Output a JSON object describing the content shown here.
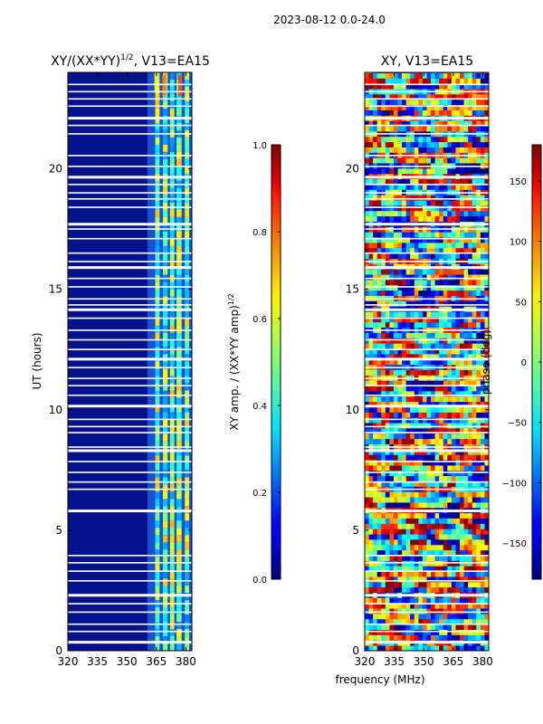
{
  "suptitle": "2023-08-12 0.0-24.0",
  "chart_data": [
    {
      "type": "heatmap",
      "title_main": "XY/(XX*YY)",
      "title_sup": "1/2",
      "title_tail": ", V13=EA15",
      "ylabel": "UT (hours)",
      "xlabel": "",
      "xlim": [
        320,
        383
      ],
      "ylim": [
        0,
        24
      ],
      "xticks": [
        "320",
        "335",
        "350",
        "365",
        "380"
      ],
      "xtick_values": [
        320,
        335,
        350,
        365,
        380
      ],
      "yticks": [
        "0",
        "5",
        "10",
        "15",
        "20"
      ],
      "ytick_values": [
        0,
        5,
        10,
        15,
        20
      ],
      "colorbar": {
        "label_main": "XY amp. / (XX*YY amp)",
        "label_sup": "1/2",
        "range": [
          0.0,
          1.0
        ],
        "ticks": [
          "0.0",
          "0.2",
          "0.4",
          "0.6",
          "0.8",
          "1.0"
        ],
        "tick_values": [
          0.0,
          0.2,
          0.4,
          0.6,
          0.8,
          1.0
        ]
      }
    },
    {
      "type": "heatmap",
      "title": "XY, V13=EA15",
      "xlabel": "frequency (MHz)",
      "ylabel": "",
      "xlim": [
        320,
        383
      ],
      "ylim": [
        0,
        24
      ],
      "xticks": [
        "320",
        "335",
        "350",
        "365",
        "380"
      ],
      "xtick_values": [
        320,
        335,
        350,
        365,
        380
      ],
      "yticks": [
        "0",
        "5",
        "10",
        "15",
        "20"
      ],
      "ytick_values": [
        0,
        5,
        10,
        15,
        20
      ],
      "colorbar": {
        "label": "phase (deg)",
        "range": [
          -180,
          180
        ],
        "ticks": [
          "−150",
          "−100",
          "−50",
          "0",
          "50",
          "100",
          "150"
        ],
        "tick_values": [
          -150,
          -100,
          -50,
          0,
          50,
          100,
          150
        ]
      }
    }
  ]
}
